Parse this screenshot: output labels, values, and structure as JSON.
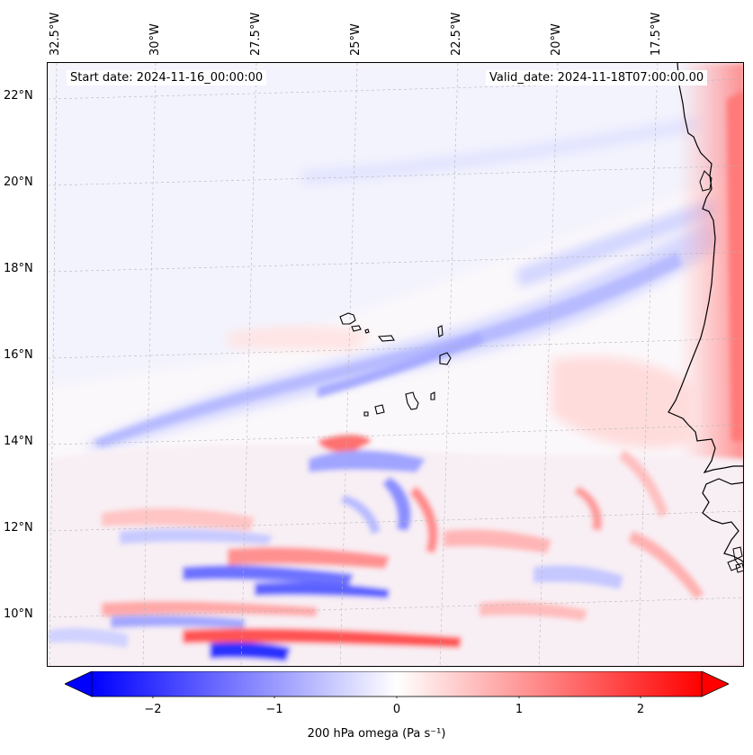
{
  "header": {
    "start_date": "Start date: 2024-11-16_00:00:00",
    "valid_date": "Valid_date: 2024-11-18T07:00:00.00"
  },
  "map": {
    "longitude_labels": [
      "32.5°W",
      "30°W",
      "27.5°W",
      "25°W",
      "22.5°W",
      "20°W",
      "17.5°W"
    ],
    "latitude_labels": [
      "22°N",
      "20°N",
      "18°N",
      "16°N",
      "14°N",
      "12°N",
      "10°N"
    ],
    "gridlines": true,
    "coastline_color": "#000000"
  },
  "colorbar": {
    "tick_labels": [
      "−2",
      "−1",
      "0",
      "1",
      "2"
    ],
    "caption": "200 hPa omega (Pa s⁻¹)",
    "min_color": "#0000ff",
    "mid_color": "#ffffff",
    "max_color": "#ff0000",
    "extend": "both"
  },
  "chart_data": {
    "type": "heatmap",
    "variable": "200 hPa omega",
    "units": "Pa s⁻¹",
    "color_range": [
      -2.6,
      2.6
    ],
    "colorbar_ticks": [
      -2,
      -1,
      0,
      1,
      2
    ],
    "lon_ticks": [
      -32.5,
      -30,
      -27.5,
      -25,
      -22.5,
      -20,
      -17.5
    ],
    "lat_ticks": [
      22,
      20,
      18,
      16,
      14,
      12,
      10
    ]
  }
}
